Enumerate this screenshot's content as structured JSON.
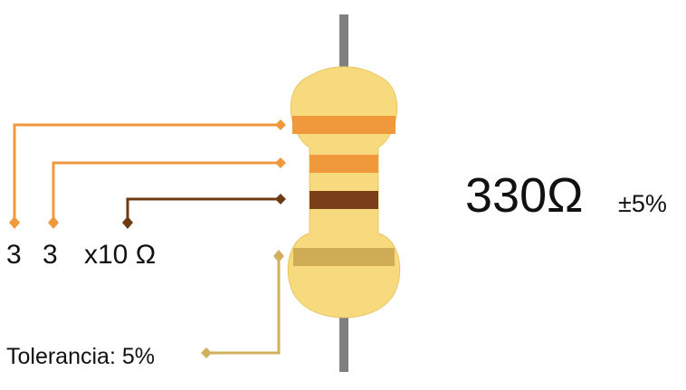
{
  "colors": {
    "lead": "#7f7f7f",
    "body": "#f8da7e",
    "band_orange": "#f0993c",
    "band_brown": "#7a3f18",
    "band_gold": "#d0ac56",
    "line_orange": "#f0993c",
    "line_brown": "#6e3b12",
    "line_gold": "#d1b05c"
  },
  "bands": [
    {
      "name": "band-1",
      "color": "band_orange",
      "digit": "3"
    },
    {
      "name": "band-2",
      "color": "band_orange",
      "digit": "3"
    },
    {
      "name": "multiplier",
      "color": "band_brown",
      "label": "x10 Ω"
    },
    {
      "name": "tolerance",
      "color": "band_gold",
      "label": "Tolerancia: 5%"
    }
  ],
  "labels": {
    "digit1": "3",
    "digit2": "3",
    "multiplier": "x10 Ω",
    "tolerance": "Tolerancia: 5%",
    "value": "330Ω",
    "value_tolerance": "±5%"
  }
}
